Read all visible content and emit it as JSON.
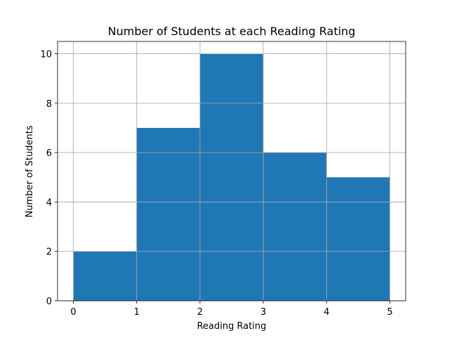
{
  "chart_data": {
    "type": "bar",
    "title": "Number of Students at each Reading Rating",
    "xlabel": "Reading Rating",
    "ylabel": "Number of Students",
    "bins": [
      [
        0,
        1
      ],
      [
        1,
        2
      ],
      [
        2,
        3
      ],
      [
        3,
        4
      ],
      [
        4,
        5
      ]
    ],
    "values": [
      2,
      7,
      10,
      6,
      5
    ],
    "xlim": [
      -0.25,
      5.25
    ],
    "ylim": [
      0,
      10.5
    ],
    "xticks": [
      0,
      1,
      2,
      3,
      4,
      5
    ],
    "yticks": [
      0,
      2,
      4,
      6,
      8,
      10
    ],
    "grid": true,
    "bar_color": "#1f77b4"
  }
}
